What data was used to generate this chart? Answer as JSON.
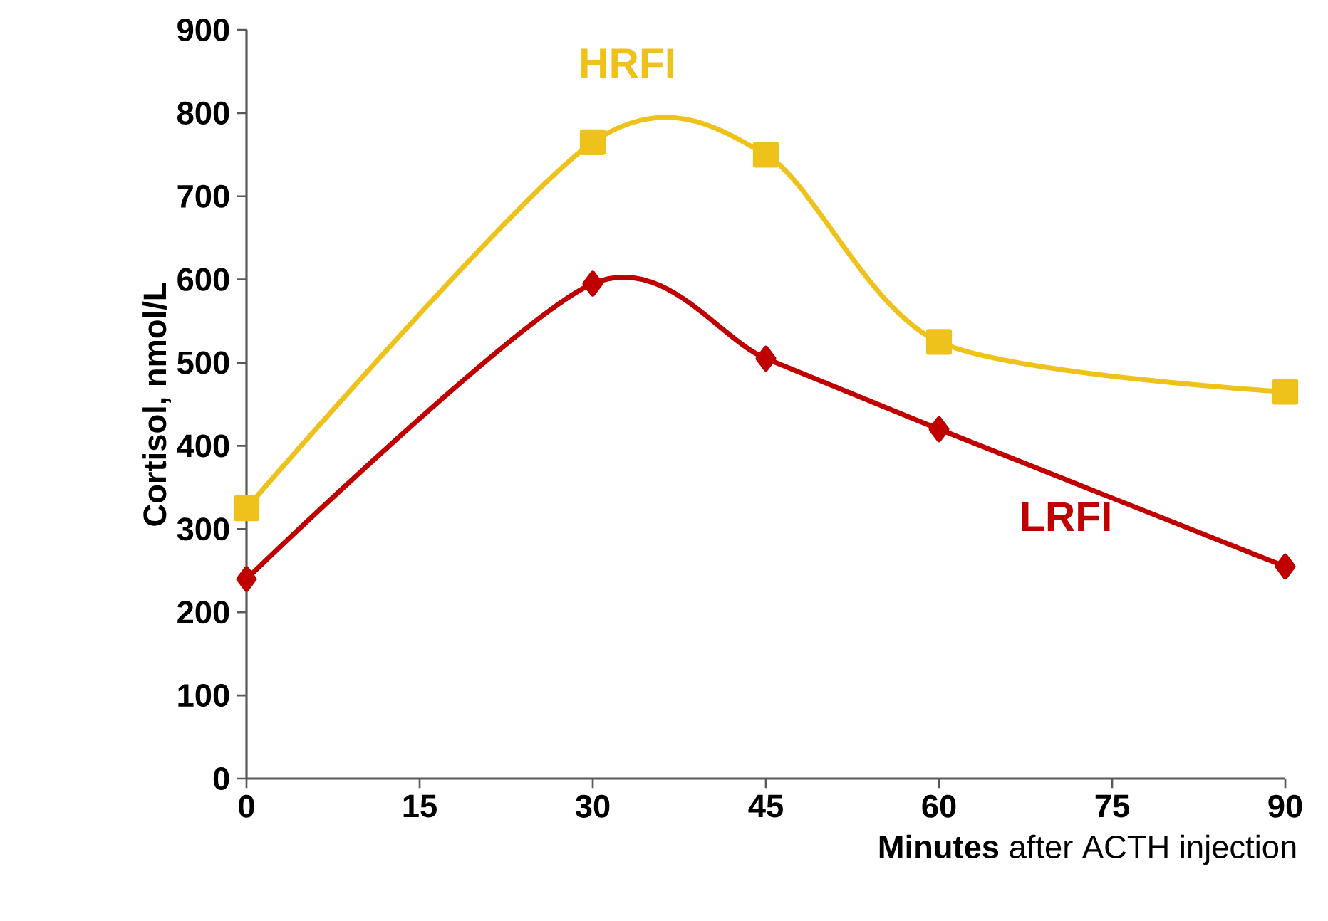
{
  "chart_data": {
    "type": "line",
    "xlabel": "**Minutes** after ACTH injection",
    "ylabel": "Cortisol, nmol/L",
    "x": [
      0,
      30,
      45,
      60,
      90
    ],
    "series": [
      {
        "name": "LRFI",
        "color": "#c00000",
        "marker": "diamond",
        "values": [
          240,
          595,
          505,
          420,
          255
        ]
      },
      {
        "name": "HRFI",
        "color": "#eec21b",
        "marker": "square",
        "values": [
          325,
          765,
          750,
          525,
          465
        ]
      }
    ],
    "xlim": [
      0,
      90
    ],
    "ylim": [
      0,
      900
    ],
    "xticks": [
      0,
      15,
      30,
      45,
      60,
      75,
      90
    ],
    "yticks": [
      0,
      100,
      200,
      300,
      400,
      500,
      600,
      700,
      800,
      900
    ],
    "grid": false,
    "line_style": "solid"
  }
}
